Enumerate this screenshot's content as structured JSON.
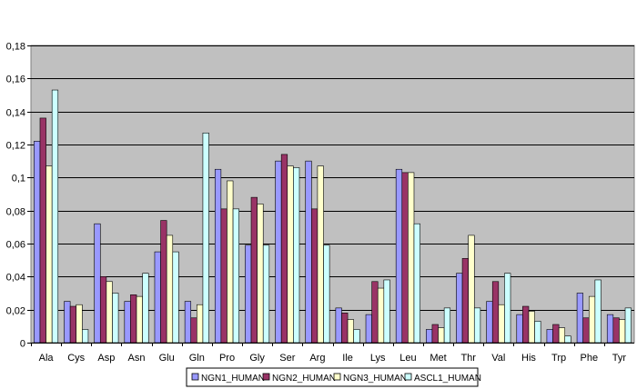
{
  "chart_data": {
    "type": "bar",
    "title": "",
    "xlabel": "",
    "ylabel": "",
    "ylim": [
      0,
      0.18
    ],
    "yticks": [
      "0",
      "0,02",
      "0,04",
      "0,06",
      "0,08",
      "0,1",
      "0,12",
      "0,14",
      "0,16",
      "0,18"
    ],
    "ytick_values": [
      0,
      0.02,
      0.04,
      0.06,
      0.08,
      0.1,
      0.12,
      0.14,
      0.16,
      0.18
    ],
    "grid": true,
    "legend_position": "bottom",
    "categories": [
      "Ala",
      "Cys",
      "Asp",
      "Asn",
      "Glu",
      "Gln",
      "Pro",
      "Gly",
      "Ser",
      "Arg",
      "Ile",
      "Lys",
      "Leu",
      "Met",
      "Thr",
      "Val",
      "His",
      "Trp",
      "Phe",
      "Tyr"
    ],
    "series": [
      {
        "name": "NGN1_HUMAN",
        "color": "#9999FF",
        "values": [
          0.122,
          0.025,
          0.072,
          0.025,
          0.055,
          0.025,
          0.105,
          0.059,
          0.11,
          0.11,
          0.021,
          0.017,
          0.105,
          0.008,
          0.042,
          0.025,
          0.017,
          0.008,
          0.03,
          0.017
        ]
      },
      {
        "name": "NGN2_HUMAN",
        "color": "#993366",
        "values": [
          0.136,
          0.022,
          0.04,
          0.029,
          0.074,
          0.015,
          0.081,
          0.088,
          0.114,
          0.081,
          0.018,
          0.037,
          0.103,
          0.011,
          0.051,
          0.037,
          0.022,
          0.011,
          0.015,
          0.015
        ]
      },
      {
        "name": "NGN3_HUMAN",
        "color": "#FFFFCC",
        "values": [
          0.107,
          0.023,
          0.037,
          0.028,
          0.065,
          0.023,
          0.098,
          0.084,
          0.107,
          0.107,
          0.014,
          0.033,
          0.103,
          0.009,
          0.065,
          0.023,
          0.019,
          0.009,
          0.028,
          0.014
        ]
      },
      {
        "name": "ASCL1_HUMAN",
        "color": "#CCFFFF",
        "values": [
          0.153,
          0.008,
          0.03,
          0.042,
          0.055,
          0.127,
          0.081,
          0.059,
          0.106,
          0.059,
          0.008,
          0.038,
          0.072,
          0.021,
          0.021,
          0.042,
          0.013,
          0.004,
          0.038,
          0.021
        ]
      }
    ]
  },
  "colors": {
    "plot_background": "#C0C0C0",
    "bar_outline": "#000000",
    "gridline": "#000000"
  }
}
